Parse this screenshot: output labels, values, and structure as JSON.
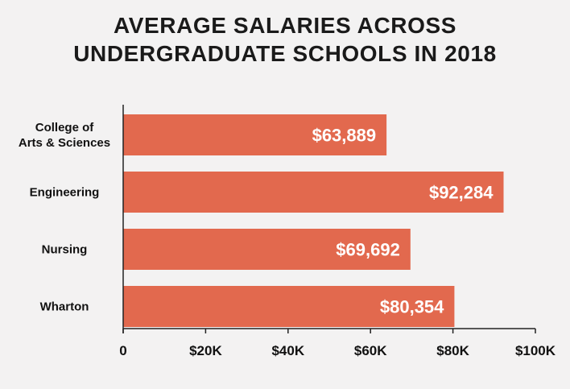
{
  "chart_data": {
    "type": "bar",
    "orientation": "horizontal",
    "title_lines": [
      "AVERAGE SALARIES ACROSS",
      "UNDERGRADUATE SCHOOLS IN 2018"
    ],
    "categories": [
      [
        "College of",
        "Arts & Sciences"
      ],
      [
        "Engineering"
      ],
      [
        "Nursing"
      ],
      [
        "Wharton"
      ]
    ],
    "values": [
      63889,
      92284,
      69692,
      80354
    ],
    "data_labels": [
      "$63,889",
      "$92,284",
      "$69,692",
      "$80,354"
    ],
    "xlim": [
      0,
      100000
    ],
    "x_ticks": [
      0,
      20000,
      40000,
      60000,
      80000,
      100000
    ],
    "x_tick_labels": [
      "0",
      "$20K",
      "$40K",
      "$60K",
      "$80K",
      "$100K"
    ],
    "grid": false,
    "legend": "none",
    "colors": {
      "bar": "#e2694e",
      "axis": "#222222",
      "background": "#f3f2f2"
    }
  }
}
